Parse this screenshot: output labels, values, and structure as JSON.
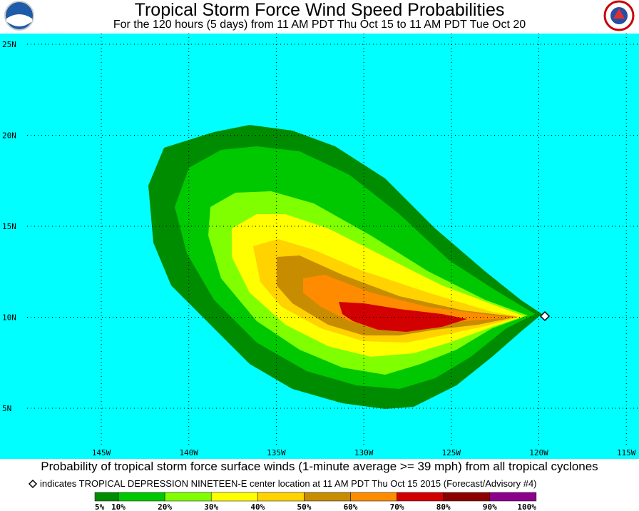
{
  "header": {
    "title": "Tropical Storm Force Wind Speed Probabilities",
    "subtitle": "For the 120 hours (5 days) from 11 AM PDT Thu Oct 15 to 11 AM PDT Tue Oct 20"
  },
  "map": {
    "lat_labels": [
      "25N",
      "20N",
      "15N",
      "10N",
      "5N"
    ],
    "lon_labels": [
      "145W",
      "140W",
      "135W",
      "130W",
      "125W",
      "120W",
      "115W"
    ]
  },
  "footer": {
    "caption": "Probability of tropical storm force surface winds (1-minute average >= 39 mph) from all tropical cyclones",
    "note": "indicates TROPICAL DEPRESSION NINETEEN-E center location at 11 AM PDT Thu Oct 15 2015 (Forecast/Advisory #4)"
  },
  "legend": {
    "labels": [
      "5%",
      "10%",
      "20%",
      "30%",
      "40%",
      "50%",
      "60%",
      "70%",
      "80%",
      "90%",
      "100%"
    ],
    "colors": [
      "#008c00",
      "#00c800",
      "#80ff00",
      "#ffff00",
      "#ffd200",
      "#c88c00",
      "#ff8c00",
      "#d20000",
      "#8c0000",
      "#8c008c"
    ]
  }
}
